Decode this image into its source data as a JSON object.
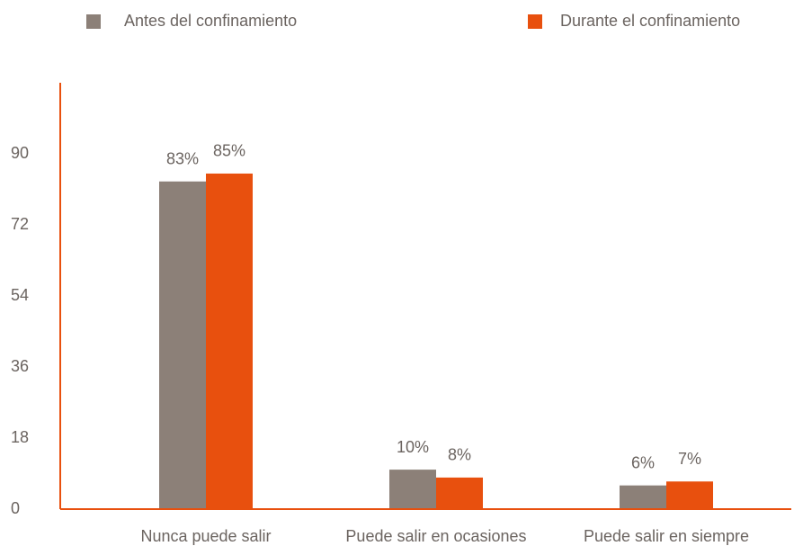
{
  "chart_data": {
    "type": "bar",
    "categories": [
      "Nunca puede salir",
      "Puede salir en ocasiones",
      "Puede salir en siempre"
    ],
    "series": [
      {
        "name": "Antes del confinamiento",
        "color": "#8c8078",
        "values": [
          83,
          10,
          6
        ],
        "value_labels": [
          "83%",
          "10%",
          "6%"
        ]
      },
      {
        "name": "Durante el confinamiento",
        "color": "#e8500e",
        "values": [
          85,
          8,
          7
        ],
        "value_labels": [
          "85%",
          "8%",
          "7%"
        ]
      }
    ],
    "ylim": [
      0,
      108
    ],
    "yticks": [
      0,
      18,
      36,
      54,
      72,
      90
    ],
    "grid": false,
    "legend": "top"
  }
}
